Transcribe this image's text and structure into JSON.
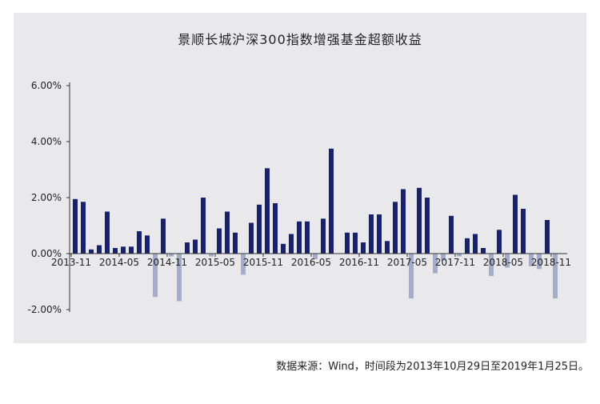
{
  "chart_data": {
    "type": "bar",
    "title": "景顺长城沪深300指数增强基金超额收益",
    "xlabel": "",
    "ylabel": "",
    "ylim": [
      -2,
      6
    ],
    "yticks": [
      "6.00%",
      "4.00%",
      "2.00%",
      "0.00%",
      "-2.00%"
    ],
    "ytick_values": [
      6,
      4,
      2,
      0,
      -2
    ],
    "xtick_labels": [
      "2013-11",
      "2014-05",
      "2014-11",
      "2015-05",
      "2015-11",
      "2016-05",
      "2016-11",
      "2017-05",
      "2017-11",
      "2018-05",
      "2018-11"
    ],
    "xtick_month_index": [
      0,
      6,
      12,
      18,
      24,
      30,
      36,
      42,
      48,
      54,
      60
    ],
    "months_count": 62,
    "colors": {
      "positive": "#18216b",
      "negative": "#a4acc9"
    },
    "values": [
      1.95,
      1.85,
      0.15,
      0.3,
      1.5,
      0.2,
      0.25,
      0.25,
      0.8,
      0.65,
      -1.55,
      1.25,
      -0.1,
      -1.7,
      0.4,
      0.5,
      2.0,
      -0.1,
      0.9,
      1.5,
      0.75,
      -0.75,
      1.1,
      1.75,
      3.05,
      1.8,
      0.35,
      0.7,
      1.15,
      1.15,
      -0.2,
      1.25,
      3.75,
      0.0,
      0.75,
      0.75,
      0.4,
      1.4,
      1.4,
      0.45,
      1.85,
      2.3,
      -1.6,
      2.35,
      2.0,
      -0.7,
      -0.25,
      1.35,
      -0.1,
      0.55,
      0.7,
      0.2,
      -0.8,
      0.85,
      -0.5,
      2.1,
      1.6,
      -0.45,
      -0.55,
      1.2,
      -1.6,
      0.0
    ]
  },
  "source_note": "数据来源：Wind，时间段为2013年10月29日至2019年1月25日。"
}
